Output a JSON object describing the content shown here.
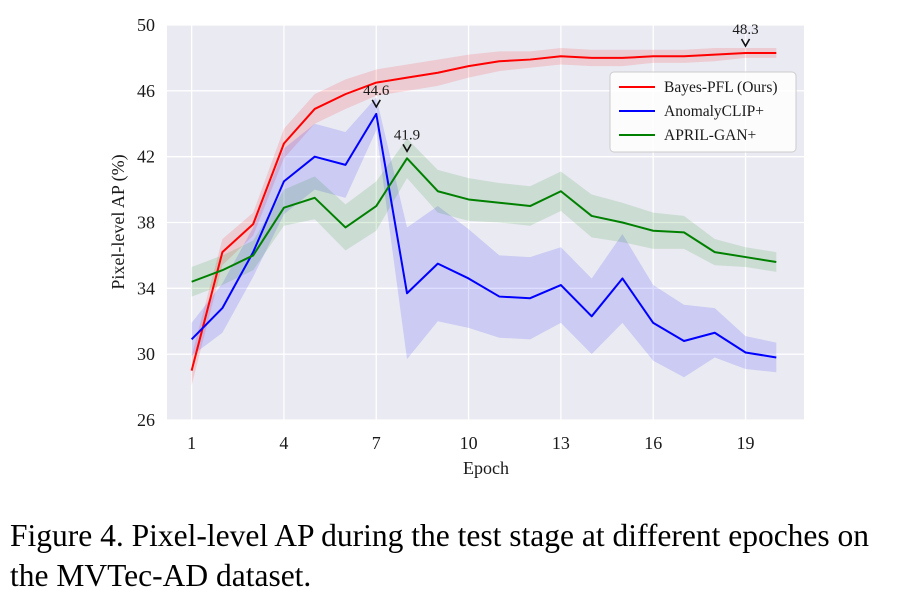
{
  "figure": {
    "caption": "Figure 4.  Pixel-level AP during the test stage at different epoches on the MVTec-AD dataset."
  },
  "chart_data": {
    "type": "line",
    "title": "",
    "xlabel": "Epoch",
    "ylabel": "Pixel-level AP (%)",
    "xlim": [
      0.2,
      20.9
    ],
    "ylim": [
      26,
      50
    ],
    "xticks": [
      1,
      4,
      7,
      10,
      13,
      16,
      19
    ],
    "yticks": [
      26,
      30,
      34,
      38,
      42,
      46,
      50
    ],
    "grid": true,
    "background": "#eaeaf2",
    "legend_position": "upper right",
    "x": [
      1,
      2,
      3,
      4,
      5,
      6,
      7,
      8,
      9,
      10,
      11,
      12,
      13,
      14,
      15,
      16,
      17,
      18,
      19,
      20
    ],
    "series": [
      {
        "name": "Bayes-PFL (Ours)",
        "color": "#ff0000",
        "values": [
          29.0,
          36.2,
          37.9,
          42.8,
          44.9,
          45.8,
          46.5,
          46.8,
          47.1,
          47.5,
          47.8,
          47.9,
          48.1,
          48.0,
          48.0,
          48.1,
          48.1,
          48.2,
          48.3,
          48.3
        ],
        "band": [
          0.9,
          0.8,
          0.7,
          0.9,
          0.9,
          0.9,
          0.8,
          0.8,
          0.8,
          0.7,
          0.6,
          0.5,
          0.5,
          0.5,
          0.5,
          0.4,
          0.4,
          0.4,
          0.3,
          0.3
        ]
      },
      {
        "name": "AnomalyCLIP+",
        "color": "#0000ff",
        "values": [
          30.9,
          32.8,
          36.2,
          40.5,
          42.0,
          41.5,
          44.6,
          33.7,
          35.5,
          34.6,
          33.5,
          33.4,
          34.2,
          32.3,
          34.6,
          31.9,
          30.8,
          31.3,
          30.1,
          29.8
        ],
        "band": [
          1.0,
          1.5,
          1.5,
          2.0,
          2.0,
          2.0,
          1.0,
          4.0,
          3.5,
          3.0,
          2.5,
          2.5,
          2.3,
          2.3,
          2.7,
          2.3,
          2.2,
          1.5,
          1.0,
          0.9
        ]
      },
      {
        "name": "APRIL-GAN+",
        "color": "#008000",
        "values": [
          34.4,
          35.1,
          36.0,
          38.9,
          39.5,
          37.7,
          39.0,
          41.9,
          39.9,
          39.4,
          39.2,
          39.0,
          39.9,
          38.4,
          38.0,
          37.5,
          37.4,
          36.2,
          35.9,
          35.6
        ],
        "band": [
          0.9,
          0.9,
          0.9,
          1.1,
          1.3,
          1.4,
          1.5,
          1.2,
          1.3,
          1.3,
          1.2,
          1.2,
          1.2,
          1.3,
          1.2,
          1.1,
          1.0,
          0.8,
          0.6,
          0.6
        ]
      }
    ],
    "annotations": [
      {
        "text": "44.6",
        "x": 7,
        "y": 44.6
      },
      {
        "text": "41.9",
        "x": 8,
        "y": 41.9
      },
      {
        "text": "48.3",
        "x": 19,
        "y": 48.3
      }
    ]
  }
}
